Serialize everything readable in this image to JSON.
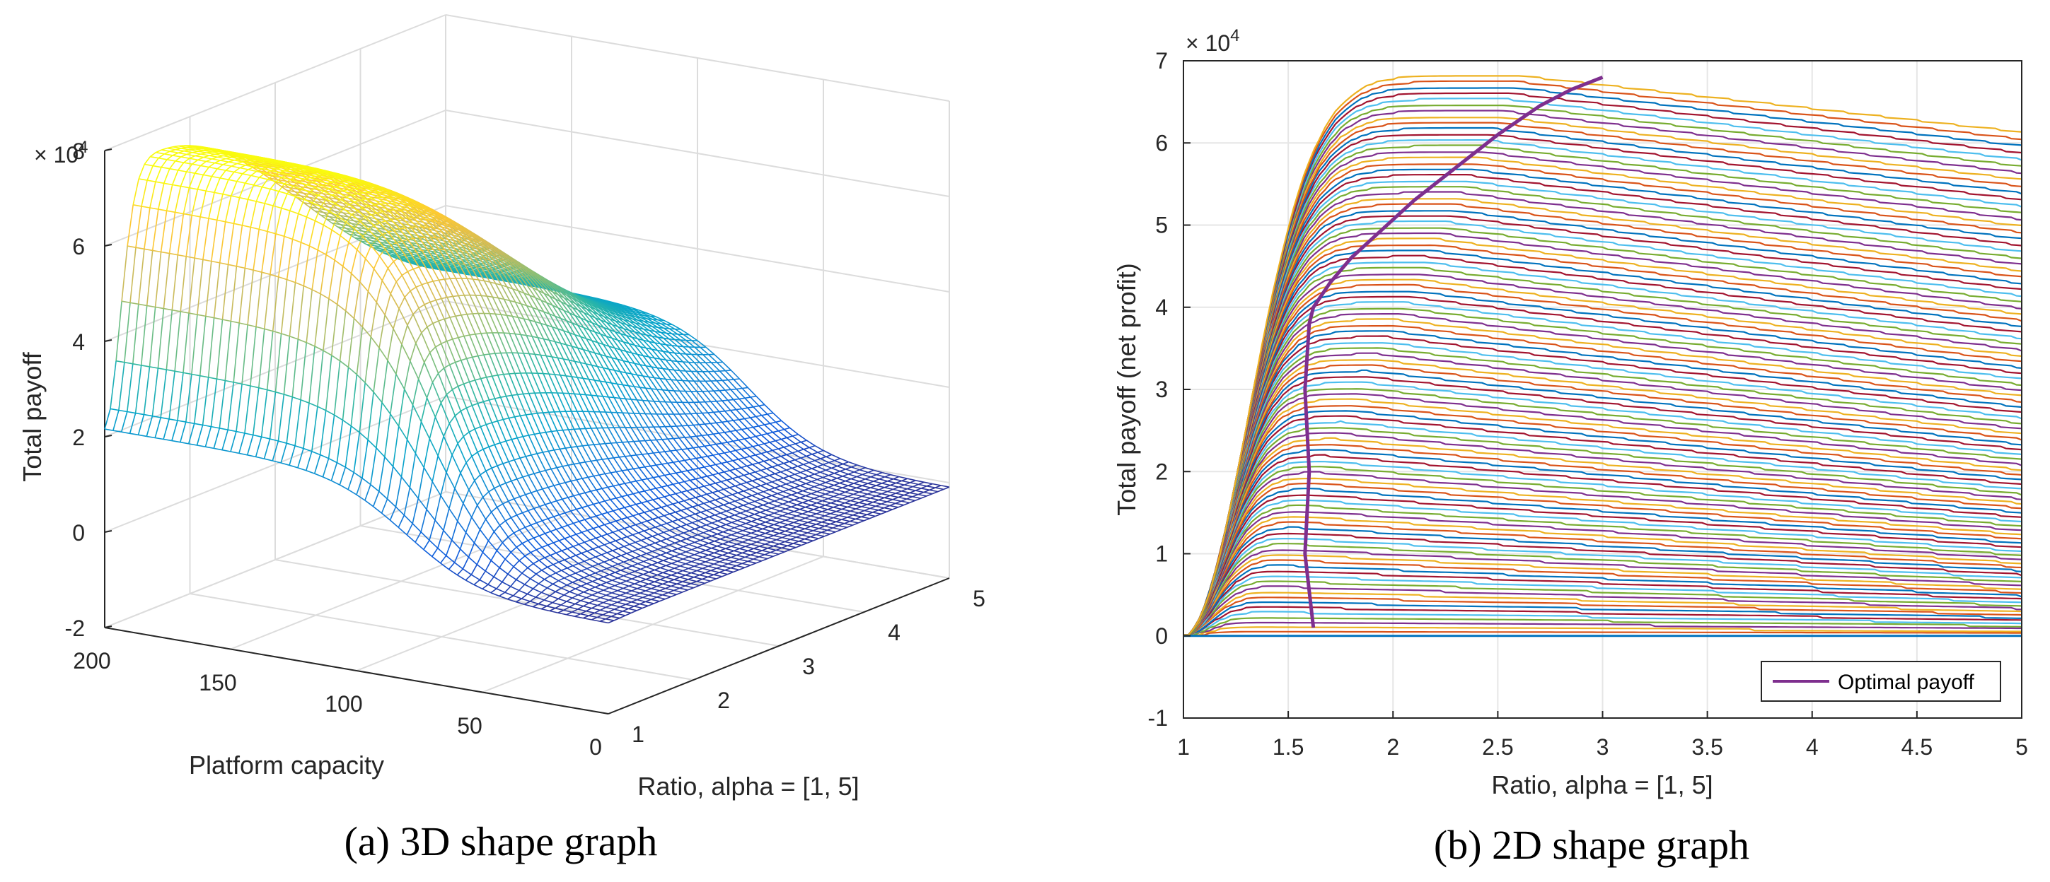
{
  "chart_data": [
    {
      "type": "surface",
      "caption": "(a) 3D shape graph",
      "zlabel": "Total payoff",
      "exponent_label": "× 10",
      "exponent_power": "4",
      "xlabel": "Platform capacity",
      "ylabel": "Ratio, alpha = [1, 5]",
      "capacity_ticks": [
        "200",
        "150",
        "100",
        "50",
        "0"
      ],
      "capacity_tick_values": [
        200,
        150,
        100,
        50,
        0
      ],
      "alpha_ticks": [
        "1",
        "2",
        "3",
        "4",
        "5"
      ],
      "alpha_tick_values": [
        1,
        2,
        3,
        4,
        5
      ],
      "z_ticks": [
        "8",
        "6",
        "4",
        "2",
        "0",
        "-2"
      ],
      "z_tick_values": [
        8,
        6,
        4,
        2,
        0,
        -2
      ],
      "xlim": [
        0,
        200
      ],
      "ylim": [
        1,
        5
      ],
      "zlim": [
        -2,
        8
      ],
      "peak_payoff": 7.2,
      "colormap": "parula",
      "colormap_colors": [
        "#352a87",
        "#0f5cdd",
        "#1481d6",
        "#06a4ca",
        "#2eb7a4",
        "#87bf77",
        "#d1bb59",
        "#fec832",
        "#f9fb0e"
      ],
      "grid": true
    },
    {
      "type": "line",
      "caption": "(b) 2D shape graph",
      "xlabel": "Ratio, alpha = [1, 5]",
      "ylabel": "Total payoff (net profit)",
      "exponent_label": "× 10",
      "exponent_power": "4",
      "x_ticks": [
        "1",
        "1.5",
        "2",
        "2.5",
        "3",
        "3.5",
        "4",
        "4.5",
        "5"
      ],
      "x_tick_values": [
        1,
        1.5,
        2,
        2.5,
        3,
        3.5,
        4,
        4.5,
        5
      ],
      "y_ticks": [
        "7",
        "6",
        "5",
        "4",
        "3",
        "2",
        "1",
        "0",
        "-1"
      ],
      "y_tick_values": [
        7,
        6,
        5,
        4,
        3,
        2,
        1,
        0,
        -1
      ],
      "xlim": [
        1,
        5
      ],
      "ylim": [
        -1,
        7
      ],
      "series_count": 100,
      "series_max_payoff": 6.82,
      "series_colors": [
        "#0072bd",
        "#d95319",
        "#edb120",
        "#7e2f8e",
        "#77ac30",
        "#4dbeee",
        "#a2142f"
      ],
      "optimal_color": "#7e2f8e",
      "optimal_payoff": {
        "name": "Optimal payoff",
        "alpha": [
          1.62,
          1.58,
          1.6,
          1.58,
          1.6,
          1.62,
          1.7,
          1.8,
          1.95,
          2.1,
          2.3,
          2.5,
          2.7,
          2.85,
          3.0
        ],
        "payoff": [
          0.1,
          1.0,
          2.0,
          3.0,
          3.8,
          4.0,
          4.3,
          4.6,
          4.95,
          5.3,
          5.7,
          6.1,
          6.45,
          6.65,
          6.8
        ]
      },
      "legend": [
        "Optimal payoff"
      ],
      "legend_position": "bottom-right",
      "grid": true
    }
  ]
}
